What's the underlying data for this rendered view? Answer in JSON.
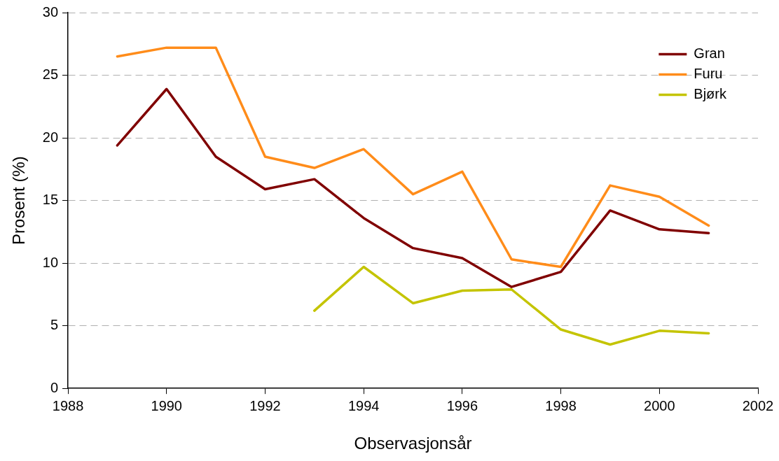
{
  "chart_data": {
    "type": "line",
    "xlabel": "Observasjonsår",
    "ylabel": "Prosent (%)",
    "xlim": [
      1988,
      2002
    ],
    "xticks": [
      1988,
      1990,
      1992,
      1994,
      1996,
      1998,
      2000,
      2002
    ],
    "ylim": [
      0,
      30
    ],
    "yticks": [
      0,
      5,
      10,
      15,
      20,
      25,
      30
    ],
    "grid": "y",
    "legend": "top right",
    "marker": "none",
    "line_style": "solid",
    "series": [
      {
        "name": "Gran",
        "color": "#800000",
        "x": [
          1989,
          1990,
          1991,
          1992,
          1993,
          1994,
          1995,
          1996,
          1997,
          1998,
          1999,
          2000,
          2001
        ],
        "values": [
          19.4,
          23.9,
          18.5,
          15.9,
          16.7,
          13.6,
          11.2,
          10.4,
          8.1,
          9.3,
          14.2,
          12.7,
          12.4
        ]
      },
      {
        "name": "Furu",
        "color": "#ff8c1a",
        "x": [
          1989,
          1990,
          1991,
          1992,
          1993,
          1994,
          1995,
          1996,
          1997,
          1998,
          1999,
          2000,
          2001
        ],
        "values": [
          26.5,
          27.2,
          27.2,
          18.5,
          17.6,
          19.1,
          15.5,
          17.3,
          10.3,
          9.7,
          16.2,
          15.3,
          13.0
        ]
      },
      {
        "name": "Bjørk",
        "color": "#c4c400",
        "x": [
          1993,
          1994,
          1995,
          1996,
          1997,
          1998,
          1999,
          2000,
          2001
        ],
        "values": [
          6.2,
          9.7,
          6.8,
          7.8,
          7.9,
          4.7,
          3.5,
          4.6,
          4.4
        ]
      }
    ]
  }
}
